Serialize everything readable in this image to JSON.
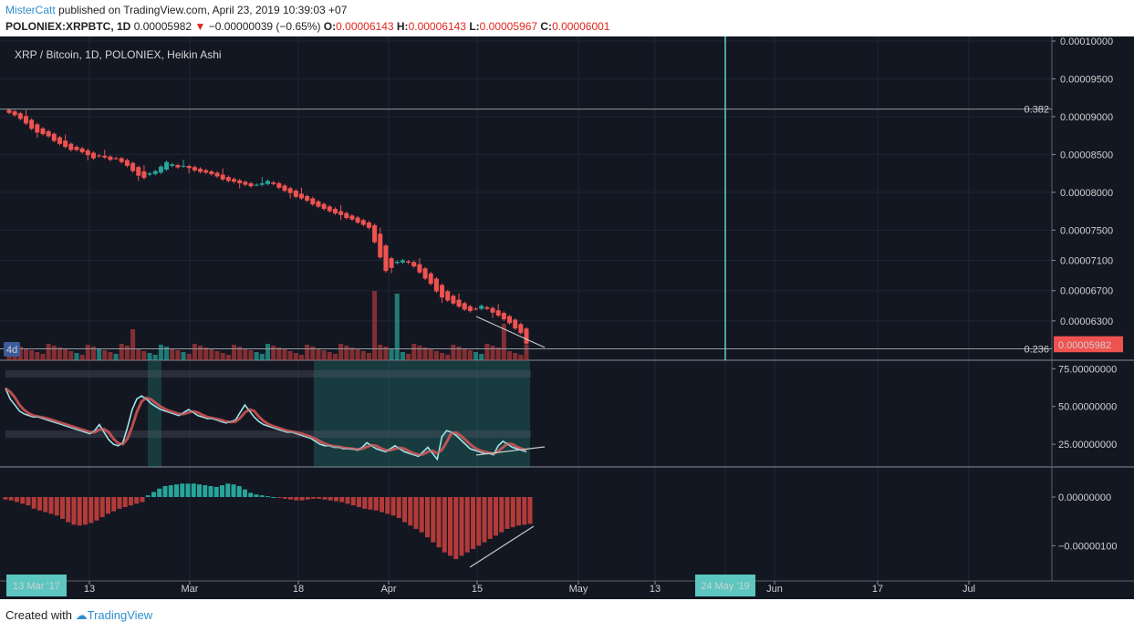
{
  "header": {
    "username": "MisterCatt",
    "published_text": "published on TradingView.com, April 23, 2019 10:39:03 +07",
    "symbol": "POLONIEX:XRPBTC, 1D",
    "price": "0.00005982",
    "change": "−0.00000039 (−0.65%)",
    "o_label": "O:",
    "o_value": "0.00006143",
    "h_label": "H:",
    "h_value": "0.00006143",
    "l_label": "L:",
    "l_value": "0.00005967",
    "c_label": "C:",
    "c_value": "0.00006001"
  },
  "footer": {
    "created_with": "Created with",
    "brand": "TradingView"
  },
  "colors": {
    "bg": "#131722",
    "up": "#26a69a",
    "down": "#ef5350",
    "down_hist": "#b23b3a",
    "cyan": "#26d7e6",
    "white_line": "#ffffff",
    "cursor": "#5cd6c9"
  },
  "chart_data": {
    "type": "candlestick",
    "title": "XRP / Bitcoin, 1D, POLONIEX, Heikin Ashi",
    "price_axis": {
      "ticks": [
        "0.00010000",
        "0.00009500",
        "0.00009000",
        "0.00008500",
        "0.00008000",
        "0.00007500",
        "0.00007100",
        "0.00006700",
        "0.00006300"
      ],
      "ylim": [
        5.78e-05,
        0.0001006
      ],
      "last_price_label": "0.00006001",
      "current_price_label": "0.00005982",
      "fib_levels": [
        {
          "label": "0.382",
          "value": 9.1e-05
        },
        {
          "label": "0.236",
          "value": 5.93e-05
        }
      ]
    },
    "x_axis": {
      "labels": [
        "13 Mar '17",
        "13",
        "Mar",
        "18",
        "Apr",
        "15",
        "May",
        "13",
        "24 May '19",
        "Jun",
        "17",
        "Jul"
      ],
      "cursor_date": "24 May '19",
      "interval_badge": "4d"
    },
    "candles_close": [
      9.05e-05,
      9.02e-05,
      8.97e-05,
      8.91e-05,
      8.84e-05,
      8.79e-05,
      8.77e-05,
      8.74e-05,
      8.68e-05,
      8.64e-05,
      8.6e-05,
      8.56e-05,
      8.56e-05,
      8.53e-05,
      8.49e-05,
      8.45e-05,
      8.48e-05,
      8.46e-05,
      8.43e-05,
      8.45e-05,
      8.4e-05,
      8.35e-05,
      8.28e-05,
      8.22e-05,
      8.19e-05,
      8.25e-05,
      8.28e-05,
      8.34e-05,
      8.4e-05,
      8.37e-05,
      8.33e-05,
      8.35e-05,
      8.32e-05,
      8.29e-05,
      8.27e-05,
      8.26e-05,
      8.24e-05,
      8.21e-05,
      8.17e-05,
      8.15e-05,
      8.14e-05,
      8.12e-05,
      8.1e-05,
      8.08e-05,
      8.1e-05,
      8.12e-05,
      8.15e-05,
      8.11e-05,
      8.06e-05,
      8.02e-05,
      7.99e-05,
      7.94e-05,
      7.92e-05,
      7.89e-05,
      7.84e-05,
      7.81e-05,
      7.78e-05,
      7.75e-05,
      7.72e-05,
      7.7e-05,
      7.66e-05,
      7.64e-05,
      7.6e-05,
      7.57e-05,
      7.53e-05,
      7.34e-05,
      7.14e-05,
      6.96e-05,
      7e-05,
      7.08e-05,
      7.1e-05,
      7.07e-05,
      7.02e-05,
      6.94e-05,
      6.86e-05,
      6.79e-05,
      6.69e-05,
      6.61e-05,
      6.57e-05,
      6.53e-05,
      6.49e-05,
      6.45e-05,
      6.43e-05,
      6.46e-05,
      6.5e-05,
      6.46e-05,
      6.41e-05,
      6.37e-05,
      6.32e-05,
      6.27e-05,
      6.2e-05,
      6.14e-05,
      6e-05
    ],
    "oscillator": {
      "ticks": [
        "75.00000000",
        "50.00000000",
        "25.00000000"
      ],
      "ylim": [
        10,
        80
      ],
      "line_values": [
        62,
        55,
        51,
        47,
        45,
        44,
        43,
        43,
        42,
        41,
        40,
        39,
        38,
        37,
        36,
        35,
        34,
        33,
        32,
        34,
        38,
        33,
        28,
        25,
        24,
        26,
        36,
        48,
        55,
        57,
        55,
        52,
        50,
        48,
        47,
        46,
        45,
        44,
        46,
        48,
        46,
        44,
        43,
        42,
        42,
        41,
        40,
        39,
        40,
        41,
        46,
        51,
        47,
        43,
        40,
        38,
        37,
        36,
        35,
        34,
        33,
        33,
        32,
        31,
        30,
        29,
        27,
        25,
        24,
        24,
        23,
        23,
        22,
        22,
        22,
        21,
        23,
        26,
        24,
        22,
        21,
        20,
        22,
        24,
        22,
        20,
        19,
        18,
        17,
        20,
        23,
        19,
        15,
        30,
        34,
        33,
        31,
        28,
        25,
        22,
        21,
        20,
        19,
        19,
        18,
        24,
        27,
        25,
        23,
        22,
        21,
        20
      ]
    },
    "histogram": {
      "ticks": [
        "0.00000000",
        "−0.00000100"
      ],
      "values": [
        -3,
        -4,
        -6,
        -8,
        -10,
        -14,
        -16,
        -18,
        -20,
        -22,
        -26,
        -30,
        -33,
        -34,
        -33,
        -31,
        -28,
        -24,
        -20,
        -17,
        -14,
        -12,
        -10,
        -8,
        -6,
        2,
        6,
        10,
        13,
        14,
        15,
        16,
        16,
        16,
        15,
        14,
        13,
        12,
        14,
        16,
        15,
        13,
        9,
        5,
        3,
        2,
        1,
        0,
        -1,
        -2,
        -3,
        -4,
        -4,
        -3,
        -2,
        -2,
        -3,
        -4,
        -5,
        -6,
        -8,
        -10,
        -12,
        -14,
        -15,
        -16,
        -18,
        -20,
        -22,
        -25,
        -30,
        -34,
        -38,
        -42,
        -48,
        -54,
        -60,
        -66,
        -70,
        -74,
        -70,
        -66,
        -62,
        -58,
        -54,
        -50,
        -46,
        -42,
        -38,
        -36,
        -34,
        -33,
        -32
      ]
    }
  }
}
